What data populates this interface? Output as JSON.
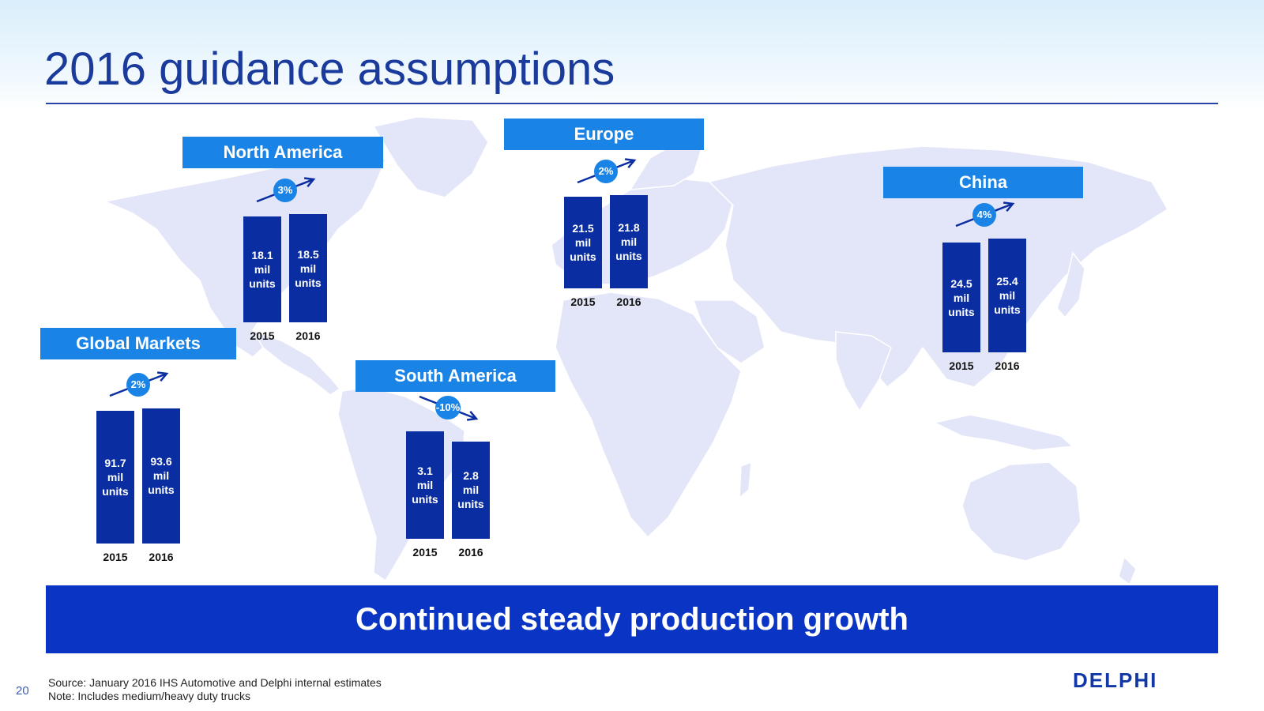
{
  "title": "2016 guidance assumptions",
  "banner": "Continued steady production growth",
  "footer": {
    "page_number": "20",
    "source": "Source: January 2016 IHS Automotive and Delphi internal estimates",
    "note": "Note: Includes medium/heavy duty trucks",
    "logo": "DELPHI"
  },
  "colors": {
    "bar": "#0a2ea1",
    "header": "#1a84e6",
    "banner": "#0a34c4",
    "title": "#1a3a9c"
  },
  "chart_data": [
    {
      "type": "bar",
      "title": "Global Markets",
      "categories": [
        "2015",
        "2016"
      ],
      "values": [
        91.7,
        93.6
      ],
      "value_labels": [
        "91.7 mil units",
        "93.6 mil units"
      ],
      "change": "2%",
      "trend": "up"
    },
    {
      "type": "bar",
      "title": "North America",
      "categories": [
        "2015",
        "2016"
      ],
      "values": [
        18.1,
        18.5
      ],
      "value_labels": [
        "18.1 mil units",
        "18.5 mil units"
      ],
      "change": "3%",
      "trend": "up"
    },
    {
      "type": "bar",
      "title": "South America",
      "categories": [
        "2015",
        "2016"
      ],
      "values": [
        3.1,
        2.8
      ],
      "value_labels": [
        "3.1 mil units",
        "2.8 mil units"
      ],
      "change": "-10%",
      "trend": "down"
    },
    {
      "type": "bar",
      "title": "Europe",
      "categories": [
        "2015",
        "2016"
      ],
      "values": [
        21.5,
        21.8
      ],
      "value_labels": [
        "21.5 mil units",
        "21.8 mil units"
      ],
      "change": "2%",
      "trend": "up"
    },
    {
      "type": "bar",
      "title": "China",
      "categories": [
        "2015",
        "2016"
      ],
      "values": [
        24.5,
        25.4
      ],
      "value_labels": [
        "24.5 mil units",
        "25.4 mil units"
      ],
      "change": "4%",
      "trend": "up"
    }
  ]
}
